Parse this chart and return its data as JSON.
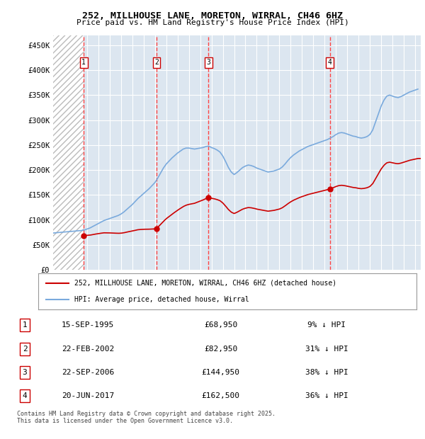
{
  "title_line1": "252, MILLHOUSE LANE, MORETON, WIRRAL, CH46 6HZ",
  "title_line2": "Price paid vs. HM Land Registry's House Price Index (HPI)",
  "background_color": "#ffffff",
  "plot_bg_color": "#dce6f0",
  "grid_color": "#ffffff",
  "hpi_color": "#7aaadd",
  "price_color": "#cc0000",
  "vline_color": "#ff4444",
  "ylim": [
    0,
    470000
  ],
  "yticks": [
    0,
    50000,
    100000,
    150000,
    200000,
    250000,
    300000,
    350000,
    400000,
    450000
  ],
  "ytick_labels": [
    "£0",
    "£50K",
    "£100K",
    "£150K",
    "£200K",
    "£250K",
    "£300K",
    "£350K",
    "£400K",
    "£450K"
  ],
  "sales": [
    {
      "label": "1",
      "date": "1995-09-15",
      "x": 1995.71,
      "price": 68950
    },
    {
      "label": "2",
      "date": "2002-02-22",
      "x": 2002.14,
      "price": 82950
    },
    {
      "label": "3",
      "date": "2006-09-22",
      "x": 2006.73,
      "price": 144950
    },
    {
      "label": "4",
      "date": "2017-06-20",
      "x": 2017.47,
      "price": 162500
    }
  ],
  "sale_rows": [
    {
      "num": "1",
      "date": "15-SEP-1995",
      "price": "£68,950",
      "pct": "9% ↓ HPI"
    },
    {
      "num": "2",
      "date": "22-FEB-2002",
      "price": "£82,950",
      "pct": "31% ↓ HPI"
    },
    {
      "num": "3",
      "date": "22-SEP-2006",
      "price": "£144,950",
      "pct": "38% ↓ HPI"
    },
    {
      "num": "4",
      "date": "20-JUN-2017",
      "price": "£162,500",
      "pct": "36% ↓ HPI"
    }
  ],
  "legend_line1": "252, MILLHOUSE LANE, MORETON, WIRRAL, CH46 6HZ (detached house)",
  "legend_line2": "HPI: Average price, detached house, Wirral",
  "footnote": "Contains HM Land Registry data © Crown copyright and database right 2025.\nThis data is licensed under the Open Government Licence v3.0.",
  "xlim_start": 1993.0,
  "xlim_end": 2025.5,
  "hatch_end": 1995.71
}
